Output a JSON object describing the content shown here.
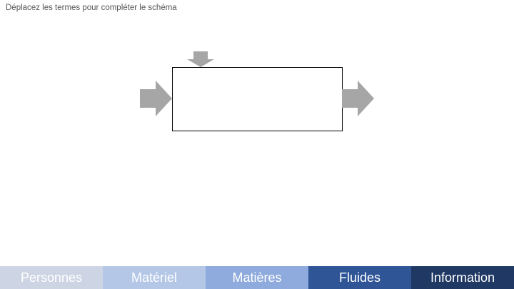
{
  "instruction": "Déplacez les termes pour compléter le schéma",
  "terms": [
    {
      "label": "Personnes",
      "color": "#cdd5e4"
    },
    {
      "label": "Matériel",
      "color": "#b4c7e7"
    },
    {
      "label": "Matières",
      "color": "#8faadc"
    },
    {
      "label": "Fluides",
      "color": "#2f5597"
    },
    {
      "label": "Information",
      "color": "#203864"
    }
  ],
  "colors": {
    "arrow": "#a6a6a6",
    "box_border": "#000000"
  }
}
